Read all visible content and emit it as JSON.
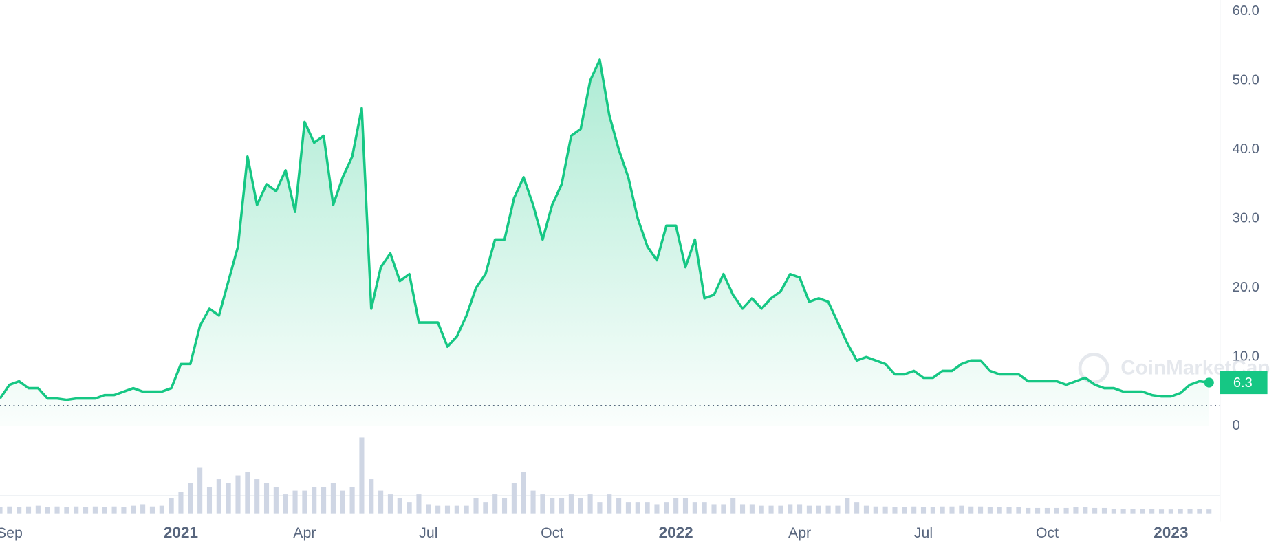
{
  "chart_data": {
    "type": "area",
    "categories": [
      null,
      "Sep",
      null,
      null,
      null,
      null,
      null,
      null,
      null,
      null,
      null,
      null,
      null,
      null,
      null,
      null,
      null,
      null,
      null,
      "2021",
      null,
      null,
      null,
      null,
      null,
      null,
      null,
      null,
      null,
      null,
      null,
      null,
      "Apr",
      null,
      null,
      null,
      null,
      null,
      null,
      null,
      null,
      null,
      null,
      null,
      null,
      "Jul",
      null,
      null,
      null,
      null,
      null,
      null,
      null,
      null,
      null,
      null,
      null,
      null,
      "Oct",
      null,
      null,
      null,
      null,
      null,
      null,
      null,
      null,
      null,
      null,
      null,
      null,
      "2022",
      null,
      null,
      null,
      null,
      null,
      null,
      null,
      null,
      null,
      null,
      null,
      null,
      "Apr",
      null,
      null,
      null,
      null,
      null,
      null,
      null,
      null,
      null,
      null,
      null,
      null,
      "Jul",
      null,
      null,
      null,
      null,
      null,
      null,
      null,
      null,
      null,
      null,
      null,
      null,
      "Oct",
      null,
      null,
      null,
      null,
      null,
      null,
      null,
      null,
      null,
      null,
      null,
      null,
      "2023",
      null,
      null,
      null,
      null
    ],
    "series": [
      {
        "color": "#16c784",
        "values": [
          4,
          6,
          6.5,
          5.5,
          5.5,
          4,
          4,
          3.8,
          4,
          4,
          4,
          4.5,
          4.5,
          5,
          5.5,
          5,
          5,
          5,
          5.5,
          9,
          9,
          14.5,
          17,
          16,
          21,
          26,
          39,
          32,
          35,
          34,
          37,
          31,
          44,
          41,
          42,
          32,
          36,
          39,
          46,
          17,
          23,
          25,
          21,
          22,
          15,
          15,
          15,
          11.5,
          13,
          16,
          20,
          22,
          27,
          27,
          33,
          36,
          32,
          27,
          32,
          35,
          42,
          43,
          50,
          53,
          45,
          40,
          36,
          30,
          26,
          24,
          29,
          29,
          23,
          27,
          18.5,
          19,
          22,
          19,
          17,
          18.5,
          17,
          18.5,
          19.5,
          22,
          21.5,
          18,
          18.5,
          18,
          15,
          12,
          9.5,
          10,
          9.5,
          9,
          7.5,
          7.5,
          8,
          7,
          7,
          8,
          8,
          9,
          9.5,
          9.5,
          8,
          7.5,
          7.5,
          7.5,
          6.5,
          6.5,
          6.5,
          6.5,
          6,
          6.5,
          7,
          6,
          5.5,
          5.5,
          5,
          5,
          5,
          4.5,
          4.3,
          4.3,
          4.8,
          6,
          6.5,
          6.3
        ]
      }
    ],
    "volume": {
      "color": "#cfd6e4",
      "ylim": [
        0,
        100
      ],
      "values": [
        8,
        9,
        8,
        9,
        10,
        8,
        9,
        8,
        9,
        8,
        9,
        8,
        9,
        8,
        10,
        12,
        9,
        10,
        20,
        28,
        40,
        60,
        35,
        45,
        40,
        50,
        55,
        45,
        40,
        35,
        25,
        30,
        30,
        35,
        35,
        40,
        30,
        35,
        100,
        45,
        30,
        25,
        20,
        15,
        25,
        12,
        10,
        10,
        10,
        10,
        20,
        15,
        25,
        20,
        40,
        55,
        30,
        25,
        20,
        20,
        25,
        20,
        25,
        15,
        25,
        20,
        15,
        15,
        15,
        12,
        15,
        20,
        20,
        15,
        15,
        12,
        12,
        20,
        12,
        12,
        10,
        10,
        10,
        12,
        12,
        10,
        10,
        10,
        10,
        20,
        15,
        10,
        9,
        9,
        8,
        8,
        9,
        8,
        8,
        9,
        9,
        10,
        9,
        9,
        8,
        8,
        8,
        8,
        7,
        7,
        7,
        7,
        7,
        8,
        8,
        7,
        7,
        6,
        6,
        6,
        6,
        6,
        5,
        5,
        6,
        6,
        6,
        5
      ]
    },
    "ylim": [
      0,
      60
    ],
    "yticks": [
      0,
      {
        "value": 10,
        "label": "10.0"
      },
      {
        "value": 20,
        "label": "20.0"
      },
      {
        "value": 30,
        "label": "30.0"
      },
      {
        "value": 40,
        "label": "40.0"
      },
      {
        "value": 50,
        "label": "50.0"
      },
      {
        "value": 60,
        "label": "60.0"
      }
    ],
    "grid": true,
    "current_price": 6.3,
    "reference_line": 3,
    "watermark": "CoinMarketCap"
  }
}
